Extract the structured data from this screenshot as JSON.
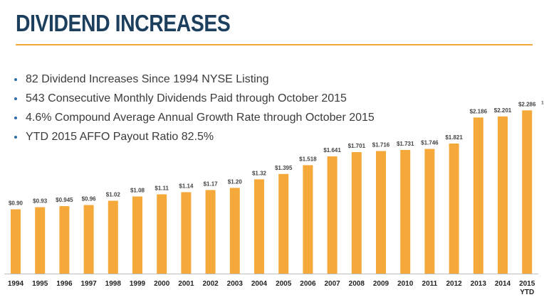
{
  "slide": {
    "title": "DIVIDEND INCREASES",
    "bullets": [
      "82 Dividend Increases Since 1994 NYSE Listing",
      "543 Consecutive Monthly Dividends Paid through October 2015",
      "4.6% Compound Average Annual Growth Rate through October 2015",
      "YTD 2015 AFFO Payout Ratio 82.5%"
    ]
  },
  "chart_data": {
    "type": "bar",
    "categories": [
      "1994",
      "1995",
      "1996",
      "1997",
      "1998",
      "1999",
      "2000",
      "2001",
      "2002",
      "2003",
      "2004",
      "2005",
      "2006",
      "2007",
      "2008",
      "2009",
      "2010",
      "2011",
      "2012",
      "2013",
      "2014",
      "2015"
    ],
    "category_sublabels": {
      "2015": "YTD"
    },
    "values": [
      0.9,
      0.93,
      0.945,
      0.96,
      1.02,
      1.08,
      1.11,
      1.14,
      1.17,
      1.2,
      1.32,
      1.395,
      1.518,
      1.641,
      1.701,
      1.716,
      1.731,
      1.746,
      1.821,
      2.186,
      2.201,
      2.286
    ],
    "data_labels": [
      "$0.90",
      "$0.93",
      "$0.945",
      "$0.96",
      "$1.02",
      "$1.08",
      "$1.11",
      "$1.14",
      "$1.17",
      "$1.20",
      "$1.32",
      "$1.395",
      "$1.518",
      "$1.641",
      "$1.701",
      "$1.716",
      "$1.731",
      "$1.746",
      "$1.821",
      "$2.186",
      "$2.201",
      "$2.286"
    ],
    "footnote_marker": {
      "index": 21,
      "text": "1"
    },
    "title": "",
    "xlabel": "",
    "ylabel": "",
    "ylim": [
      0,
      2.4
    ],
    "grid": false,
    "colors": {
      "bar": "#f6a93b"
    }
  }
}
